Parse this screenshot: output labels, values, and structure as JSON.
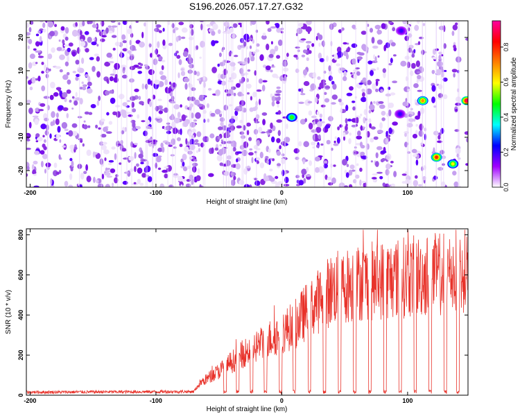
{
  "title": "S196.2026.057.17.27.G32",
  "chart_data": [
    {
      "type": "heatmap",
      "xlabel": "Height of straight line (km)",
      "ylabel": "Frequency (Hz)",
      "xlim": [
        -203,
        148
      ],
      "ylim": [
        -25,
        25
      ],
      "xticks": [
        -200,
        -100,
        0,
        100
      ],
      "yticks": [
        -20,
        -10,
        0,
        10,
        20
      ],
      "colorbar": {
        "label": "Normalized spectral amplitude",
        "range": [
          0.0,
          0.95
        ],
        "ticks": [
          "0.0",
          "0.2",
          "0.4",
          "0.6",
          "0.8"
        ],
        "colormap": [
          "#ffffff",
          "#a000ff",
          "#0000ff",
          "#00ffff",
          "#00ff00",
          "#ffff00",
          "#ff8000",
          "#ff0000",
          "#ff00a0"
        ]
      },
      "background_level": 0.1,
      "blank_columns_km": [
        8,
        93,
        117,
        133,
        144
      ],
      "hot_spots": [
        {
          "x": 8,
          "y": -4,
          "amplitude": 0.5
        },
        {
          "x": 94,
          "y": -3,
          "amplitude": 0.2
        },
        {
          "x": 95,
          "y": 22,
          "amplitude": 0.2
        },
        {
          "x": 112,
          "y": 1,
          "amplitude": 0.7
        },
        {
          "x": 123,
          "y": -16,
          "amplitude": 0.8
        },
        {
          "x": 136,
          "y": -18,
          "amplitude": 0.6
        },
        {
          "x": 147,
          "y": 1,
          "amplitude": 0.9
        }
      ]
    },
    {
      "type": "line",
      "xlabel": "Height of straight line (km)",
      "ylabel": "SNR (10 * v/v)",
      "xlim": [
        -203,
        148
      ],
      "ylim": [
        0,
        830
      ],
      "xticks": [
        -200,
        -100,
        0,
        100
      ],
      "yticks": [
        0,
        200,
        400,
        600,
        800
      ],
      "color": "#e8322a",
      "envelope": {
        "x": [
          -203,
          -70,
          -65,
          -50,
          -30,
          -10,
          10,
          20,
          40,
          60,
          80,
          100,
          120,
          148
        ],
        "y": [
          15,
          18,
          60,
          120,
          210,
          280,
          350,
          420,
          530,
          560,
          575,
          590,
          600,
          620
        ]
      },
      "dropouts_km": [
        -45,
        -35,
        -24,
        -13,
        -1,
        10,
        22,
        34,
        46,
        58,
        70,
        82,
        94,
        106,
        118,
        130,
        140
      ]
    }
  ]
}
